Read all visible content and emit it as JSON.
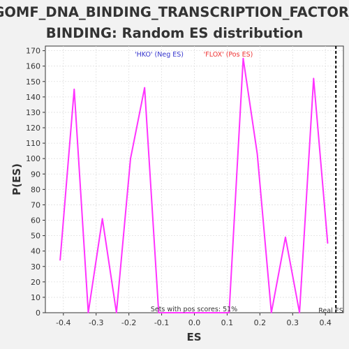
{
  "chart_data": {
    "type": "line",
    "title_line1": "GOMF_DNA_BINDING_TRANSCRIPTION_FACTOR_",
    "title_line2": "BINDING: Random ES distribution",
    "xlabel": "ES",
    "ylabel": "P(ES)",
    "xlim": [
      -0.455,
      0.455
    ],
    "ylim": [
      0,
      173
    ],
    "x_ticks": [
      -0.4,
      -0.3,
      -0.2,
      -0.1,
      0.0,
      0.1,
      0.2,
      0.3,
      0.4
    ],
    "x_tick_labels": [
      "-0.4",
      "-0.3",
      "-0.2",
      "-0.1",
      "0.0",
      "0.1",
      "0.2",
      "0.3",
      "0.4"
    ],
    "y_ticks": [
      0,
      10,
      20,
      30,
      40,
      50,
      60,
      70,
      80,
      90,
      100,
      110,
      120,
      130,
      140,
      150,
      160,
      170
    ],
    "y_tick_labels": [
      "0",
      "10",
      "20",
      "30",
      "40",
      "50",
      "60",
      "70",
      "80",
      "90",
      "100",
      "110",
      "120",
      "130",
      "140",
      "150",
      "160",
      "170"
    ],
    "grid": true,
    "series": [
      {
        "name": "",
        "color": "#ff33ff",
        "x": [
          -0.41,
          -0.367,
          -0.324,
          -0.281,
          -0.238,
          -0.195,
          -0.152,
          -0.109,
          -0.066,
          -0.023,
          0.02,
          0.063,
          0.106,
          0.149,
          0.192,
          0.235,
          0.278,
          0.321,
          0.364,
          0.407
        ],
        "y": [
          34,
          145,
          0,
          61,
          0,
          100,
          146,
          0,
          0,
          0,
          0,
          0,
          0,
          165,
          103,
          0,
          49,
          0,
          152,
          45
        ]
      }
    ],
    "legend": {
      "neg_label": "'HKO' (Neg ES)",
      "neg_color": "#3333cc",
      "pos_label": "'FLOX' (Pos ES)",
      "pos_color": "#ee3333"
    },
    "real_es": {
      "x": 0.432,
      "label": "Real ES",
      "color": "#000000"
    },
    "pos_scores_text": "Sets with pos scores: 51%"
  }
}
